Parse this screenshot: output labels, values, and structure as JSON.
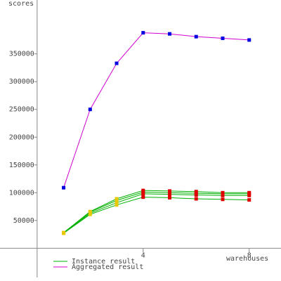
{
  "chart_data": {
    "type": "line",
    "ylabel": "scores",
    "xlabel": "warehouses",
    "x": [
      1,
      2,
      3,
      4,
      5,
      6,
      7,
      8
    ],
    "xlim": [
      -1.4,
      9.2
    ],
    "xticks": [
      4,
      8
    ],
    "ylim": [
      -59000,
      447000
    ],
    "yticks": [
      50000,
      100000,
      150000,
      200000,
      250000,
      300000,
      350000
    ],
    "series": [
      {
        "name": "Instance result",
        "color": "#00b000",
        "marker_colors": [
          "#e8c800",
          "#e8c800",
          "#e8c800",
          "#e00000",
          "#e00000",
          "#e00000",
          "#e00000",
          "#e00000"
        ],
        "instances": [
          [
            27000,
            61000,
            78000,
            92000,
            91000,
            89000,
            88000,
            87000
          ],
          [
            27000,
            63000,
            82000,
            98000,
            97000,
            96000,
            95000,
            95000
          ],
          [
            28000,
            65000,
            86000,
            101000,
            100000,
            99000,
            98000,
            98000
          ],
          [
            28000,
            66000,
            89000,
            104000,
            103000,
            102000,
            100000,
            100000
          ]
        ]
      },
      {
        "name": "Aggregated result",
        "color": "#d000d0",
        "marker_color": "#0000e0",
        "values": [
          109000,
          250000,
          333000,
          388000,
          386000,
          381000,
          378000,
          375000
        ]
      }
    ]
  }
}
